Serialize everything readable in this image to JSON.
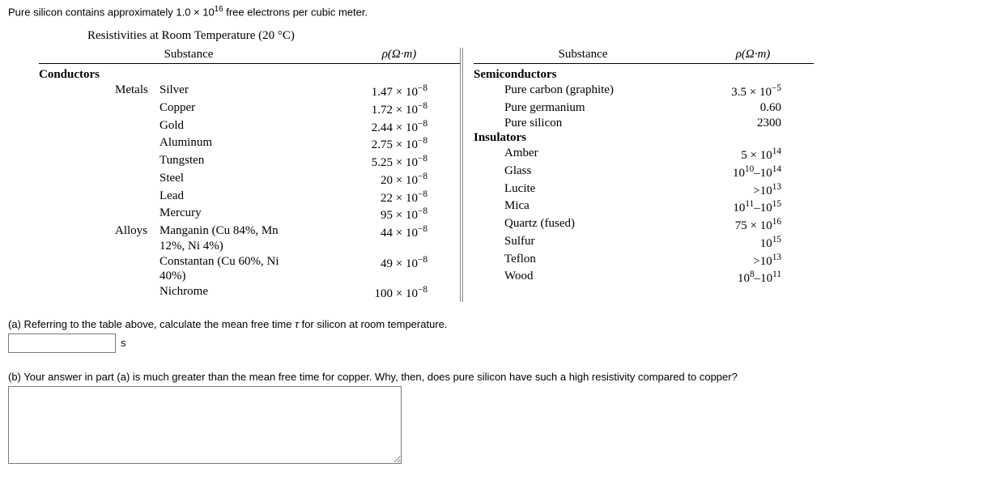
{
  "intro_html": "Pure silicon contains approximately 1.0 × 10<span class=\"sup\">16</span> free electrons per cubic meter.",
  "table_title_html": "Resistivities at Room Temperature (20 °C)",
  "headers": {
    "substance": "Substance",
    "rho_html": "ρ(Ω·m)"
  },
  "left": {
    "category": "Conductors",
    "groups": [
      {
        "subcat": "Metals",
        "rows": [
          {
            "name": "Silver",
            "val_html": "1.47 × 10<span class=\"sup\">−8</span>"
          },
          {
            "name": "Copper",
            "val_html": "1.72 × 10<span class=\"sup\">−8</span>"
          },
          {
            "name": "Gold",
            "val_html": "2.44 × 10<span class=\"sup\">−8</span>"
          },
          {
            "name": "Aluminum",
            "val_html": "2.75 × 10<span class=\"sup\">−8</span>"
          },
          {
            "name": "Tungsten",
            "val_html": "5.25 × 10<span class=\"sup\">−8</span>"
          },
          {
            "name": "Steel",
            "val_html": "20 × 10<span class=\"sup\">−8</span>"
          },
          {
            "name": "Lead",
            "val_html": "22 × 10<span class=\"sup\">−8</span>"
          },
          {
            "name": "Mercury",
            "val_html": "95 × 10<span class=\"sup\">−8</span>"
          }
        ]
      },
      {
        "subcat": "Alloys",
        "rows": [
          {
            "name": "Manganin (Cu 84%, Mn 12%, Ni 4%)",
            "val_html": "44 × 10<span class=\"sup\">−8</span>"
          },
          {
            "name": "Constantan (Cu 60%, Ni 40%)",
            "val_html": "49 × 10<span class=\"sup\">−8</span>"
          },
          {
            "name": "Nichrome",
            "val_html": "100 × 10<span class=\"sup\">−8</span>"
          }
        ]
      }
    ]
  },
  "right": {
    "groups": [
      {
        "category": "Semiconductors",
        "rows": [
          {
            "name": "Pure carbon (graphite)",
            "val_html": "3.5 × 10<span class=\"sup\">−5</span>"
          },
          {
            "name": "Pure germanium",
            "val_html": "0.60"
          },
          {
            "name": "Pure silicon",
            "val_html": "2300"
          }
        ]
      },
      {
        "category": "Insulators",
        "rows": [
          {
            "name": "Amber",
            "val_html": "5 × 10<span class=\"sup\">14</span>"
          },
          {
            "name": "Glass",
            "val_html": "10<span class=\"sup\">10</span>–10<span class=\"sup\">14</span>"
          },
          {
            "name": "Lucite",
            "val_html": ">10<span class=\"sup\">13</span>"
          },
          {
            "name": "Mica",
            "val_html": "10<span class=\"sup\">11</span>–10<span class=\"sup\">15</span>"
          },
          {
            "name": "Quartz (fused)",
            "val_html": "75 × 10<span class=\"sup\">16</span>"
          },
          {
            "name": "Sulfur",
            "val_html": "10<span class=\"sup\">15</span>"
          },
          {
            "name": "Teflon",
            "val_html": ">10<span class=\"sup\">13</span>"
          },
          {
            "name": "Wood",
            "val_html": "10<span class=\"sup\">8</span>–10<span class=\"sup\">11</span>"
          }
        ]
      }
    ]
  },
  "qa_html": "(a) Referring to the table above, calculate the mean free time <span class=\"greek\">τ</span> for silicon at room temperature.",
  "unit_a": "s",
  "qb": "(b) Your answer in part (a) is much greater than the mean free time for copper. Why, then, does pure silicon have such a high resistivity compared to copper?"
}
